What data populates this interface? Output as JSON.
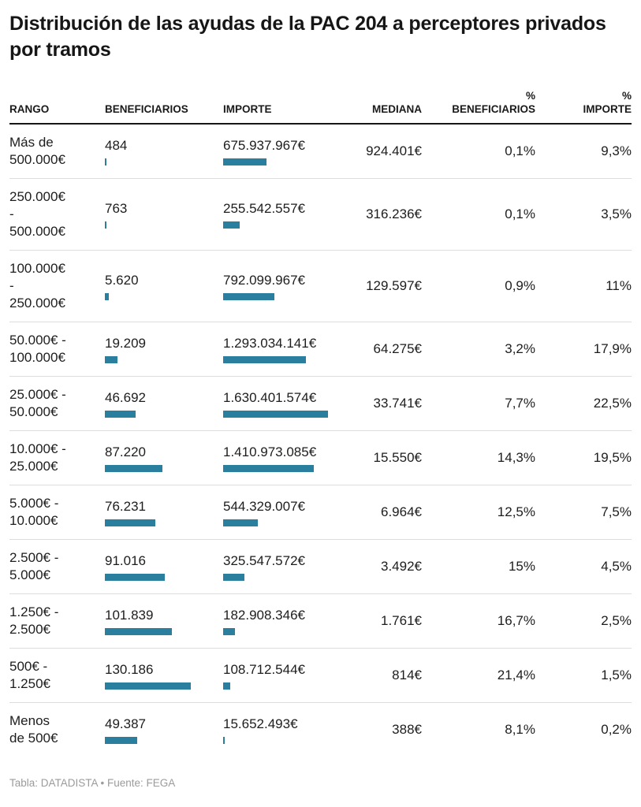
{
  "title": "Distribución de las ayudas de la PAC 204 a perceptores privados por tramos",
  "credit": "Tabla: DATADISTA • Fuente: FEGA",
  "colors": {
    "bar": "#2a7f9e",
    "title": "#161616",
    "body_text": "#1d1d1d",
    "header_rule": "#161616",
    "row_separator": "#dddddd",
    "credit_text": "#9b9b9b"
  },
  "header": {
    "cells": [
      {
        "label": "RANGO"
      },
      {
        "label": "BENEFICIARIOS"
      },
      {
        "label": "IMPORTE"
      },
      {
        "label": "MEDIANA"
      },
      {
        "label": "%\nBENEFICIARIOS"
      },
      {
        "label": "%\nIMPORTE"
      }
    ]
  },
  "chart_data": {
    "type": "table",
    "title": "Distribución de las ayudas de la PAC 204 a perceptores privados por tramos",
    "columns": [
      "RANGO",
      "BENEFICIARIOS",
      "IMPORTE",
      "MEDIANA",
      "% BENEFICIARIOS",
      "% IMPORTE"
    ],
    "bar_columns": [
      "BENEFICIARIOS",
      "IMPORTE"
    ],
    "rows": [
      {
        "rango": "Más de\n500.000€",
        "beneficiarios_label": "484",
        "beneficiarios": 484,
        "importe_label": "675.937.967€",
        "importe": 675937967,
        "mediana": "924.401€",
        "pct_beneficiarios": "0,1%",
        "pct_importe": "9,3%"
      },
      {
        "rango": "250.000€\n-\n500.000€",
        "beneficiarios_label": "763",
        "beneficiarios": 763,
        "importe_label": "255.542.557€",
        "importe": 255542557,
        "mediana": "316.236€",
        "pct_beneficiarios": "0,1%",
        "pct_importe": "3,5%"
      },
      {
        "rango": "100.000€\n-\n250.000€",
        "beneficiarios_label": "5.620",
        "beneficiarios": 5620,
        "importe_label": "792.099.967€",
        "importe": 792099967,
        "mediana": "129.597€",
        "pct_beneficiarios": "0,9%",
        "pct_importe": "11%"
      },
      {
        "rango": "50.000€ -\n100.000€",
        "beneficiarios_label": "19.209",
        "beneficiarios": 19209,
        "importe_label": "1.293.034.141€",
        "importe": 1293034141,
        "mediana": "64.275€",
        "pct_beneficiarios": "3,2%",
        "pct_importe": "17,9%"
      },
      {
        "rango": "25.000€ -\n50.000€",
        "beneficiarios_label": "46.692",
        "beneficiarios": 46692,
        "importe_label": "1.630.401.574€",
        "importe": 1630401574,
        "mediana": "33.741€",
        "pct_beneficiarios": "7,7%",
        "pct_importe": "22,5%"
      },
      {
        "rango": "10.000€ -\n25.000€",
        "beneficiarios_label": "87.220",
        "beneficiarios": 87220,
        "importe_label": "1.410.973.085€",
        "importe": 1410973085,
        "mediana": "15.550€",
        "pct_beneficiarios": "14,3%",
        "pct_importe": "19,5%"
      },
      {
        "rango": "5.000€ -\n10.000€",
        "beneficiarios_label": "76.231",
        "beneficiarios": 76231,
        "importe_label": "544.329.007€",
        "importe": 544329007,
        "mediana": "6.964€",
        "pct_beneficiarios": "12,5%",
        "pct_importe": "7,5%"
      },
      {
        "rango": "2.500€ -\n5.000€",
        "beneficiarios_label": "91.016",
        "beneficiarios": 91016,
        "importe_label": "325.547.572€",
        "importe": 325547572,
        "mediana": "3.492€",
        "pct_beneficiarios": "15%",
        "pct_importe": "4,5%"
      },
      {
        "rango": "1.250€ -\n2.500€",
        "beneficiarios_label": "101.839",
        "beneficiarios": 101839,
        "importe_label": "182.908.346€",
        "importe": 182908346,
        "mediana": "1.761€",
        "pct_beneficiarios": "16,7%",
        "pct_importe": "2,5%"
      },
      {
        "rango": "500€ -\n1.250€",
        "beneficiarios_label": "130.186",
        "beneficiarios": 130186,
        "importe_label": "108.712.544€",
        "importe": 108712544,
        "mediana": "814€",
        "pct_beneficiarios": "21,4%",
        "pct_importe": "1,5%"
      },
      {
        "rango": "Menos\nde 500€",
        "beneficiarios_label": "49.387",
        "beneficiarios": 49387,
        "importe_label": "15.652.493€",
        "importe": 15652493,
        "mediana": "388€",
        "pct_beneficiarios": "8,1%",
        "pct_importe": "0,2%"
      }
    ]
  }
}
